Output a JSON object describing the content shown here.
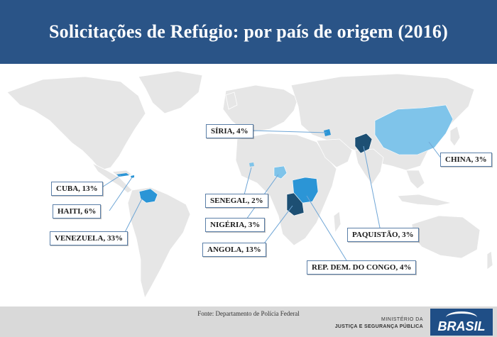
{
  "title": "Solicitações de Refúgio: por país de origem (2016)",
  "colors": {
    "header": "#2a5487",
    "land": "#e6e6e6",
    "light_blue": "#7fc4ea",
    "medium_blue": "#2b95d6",
    "dark_blue": "#1d4f73",
    "footer": "#d9d9d9"
  },
  "countries": [
    {
      "id": "venezuela",
      "label": "VENEZUELA, 33%",
      "country": "Venezuela",
      "percent": 33,
      "shade": "medium_blue"
    },
    {
      "id": "cuba",
      "label": "CUBA, 13%",
      "country": "Cuba",
      "percent": 13,
      "shade": "medium_blue"
    },
    {
      "id": "haiti",
      "label": "HAITI, 6%",
      "country": "Haiti",
      "percent": 6,
      "shade": "medium_blue"
    },
    {
      "id": "angola",
      "label": "ANGOLA, 13%",
      "country": "Angola",
      "percent": 13,
      "shade": "dark_blue"
    },
    {
      "id": "rdc",
      "label": "REP. DEM. DO CONGO, 4%",
      "country": "Rep. Dem. do Congo",
      "percent": 4,
      "shade": "medium_blue"
    },
    {
      "id": "siria",
      "label": "SÍRIA, 4%",
      "country": "Síria",
      "percent": 4,
      "shade": "medium_blue"
    },
    {
      "id": "china",
      "label": "CHINA, 3%",
      "country": "China",
      "percent": 3,
      "shade": "light_blue"
    },
    {
      "id": "paquistao",
      "label": "PAQUISTÃO, 3%",
      "country": "Paquistão",
      "percent": 3,
      "shade": "dark_blue"
    },
    {
      "id": "nigeria",
      "label": "NIGÉRIA, 3%",
      "country": "Nigéria",
      "percent": 3,
      "shade": "light_blue"
    },
    {
      "id": "senegal",
      "label": "SENEGAL, 2%",
      "country": "Senegal",
      "percent": 2,
      "shade": "light_blue"
    }
  ],
  "source": "Fonte: Departamento de Polícia Federal",
  "ministry": {
    "line1": "MINISTÉRIO DA",
    "line2": "JUSTIÇA E SEGURANÇA PÚBLICA"
  },
  "logo_text": "BRASIL"
}
